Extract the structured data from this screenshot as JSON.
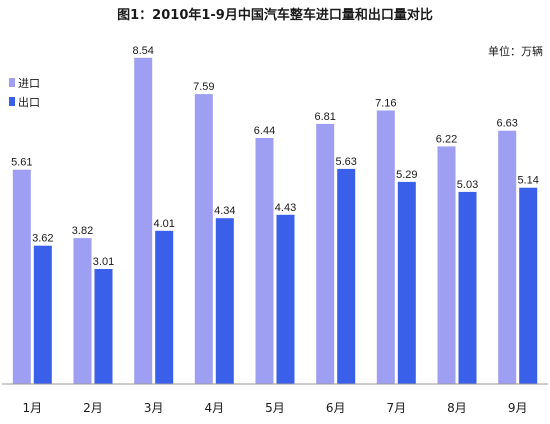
{
  "chart_data": {
    "type": "bar",
    "title": "图1：2010年1-9月中国汽车整车进口量和出口量对比",
    "unit_label": "单位：万辆",
    "categories": [
      "1月",
      "2月",
      "3月",
      "4月",
      "5月",
      "6月",
      "7月",
      "8月",
      "9月"
    ],
    "series": [
      {
        "name": "进口",
        "color": "#9e9ef2",
        "values": [
          5.61,
          3.82,
          8.54,
          7.59,
          6.44,
          6.81,
          7.16,
          6.22,
          6.63
        ]
      },
      {
        "name": "出口",
        "color": "#3a5fe8",
        "values": [
          3.62,
          3.01,
          4.01,
          4.34,
          4.43,
          5.63,
          5.29,
          5.03,
          5.14
        ]
      }
    ],
    "ylim": [
      0,
      10
    ],
    "grid": false,
    "legend_position": "top-left"
  }
}
